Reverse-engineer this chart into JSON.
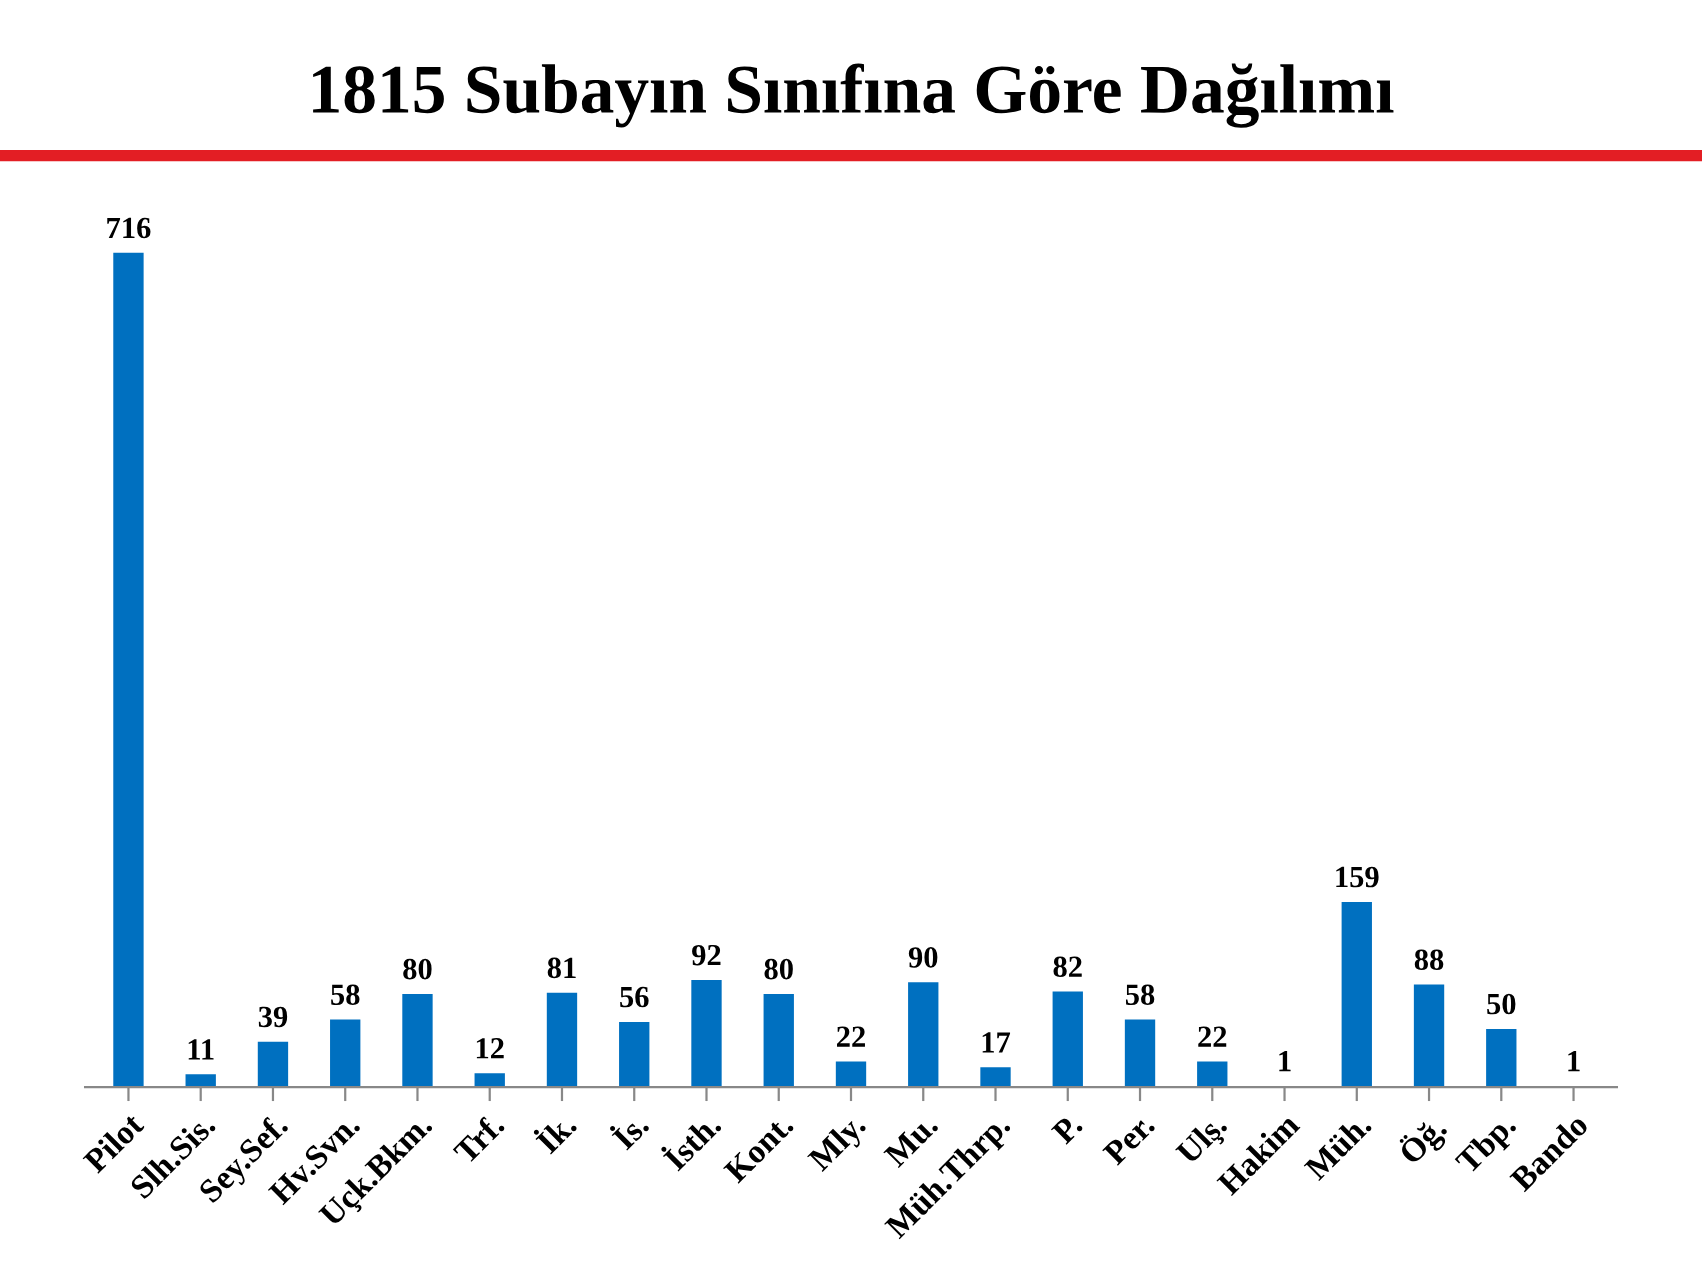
{
  "chart_data": {
    "type": "bar",
    "title": "1815 Subayın Sınıfına Göre Dağılımı",
    "categories": [
      "Pilot",
      "Slh.Sis.",
      "Sey.Sef.",
      "Hv.Svn.",
      "Uçk.Bkm.",
      "Trf.",
      "İk.",
      "İs.",
      "İsth.",
      "Kont.",
      "Mly.",
      "Mu.",
      "Müh.Thrp.",
      "P.",
      "Per.",
      "Ulş.",
      "Hakim",
      "Müh.",
      "Öğ.",
      "Tbp.",
      "Bando"
    ],
    "values": [
      716,
      11,
      39,
      58,
      80,
      12,
      81,
      56,
      92,
      80,
      22,
      90,
      17,
      82,
      58,
      22,
      1,
      159,
      88,
      50,
      1
    ],
    "color": "#0070c0",
    "data_labels": true,
    "tick_labels": "x"
  }
}
